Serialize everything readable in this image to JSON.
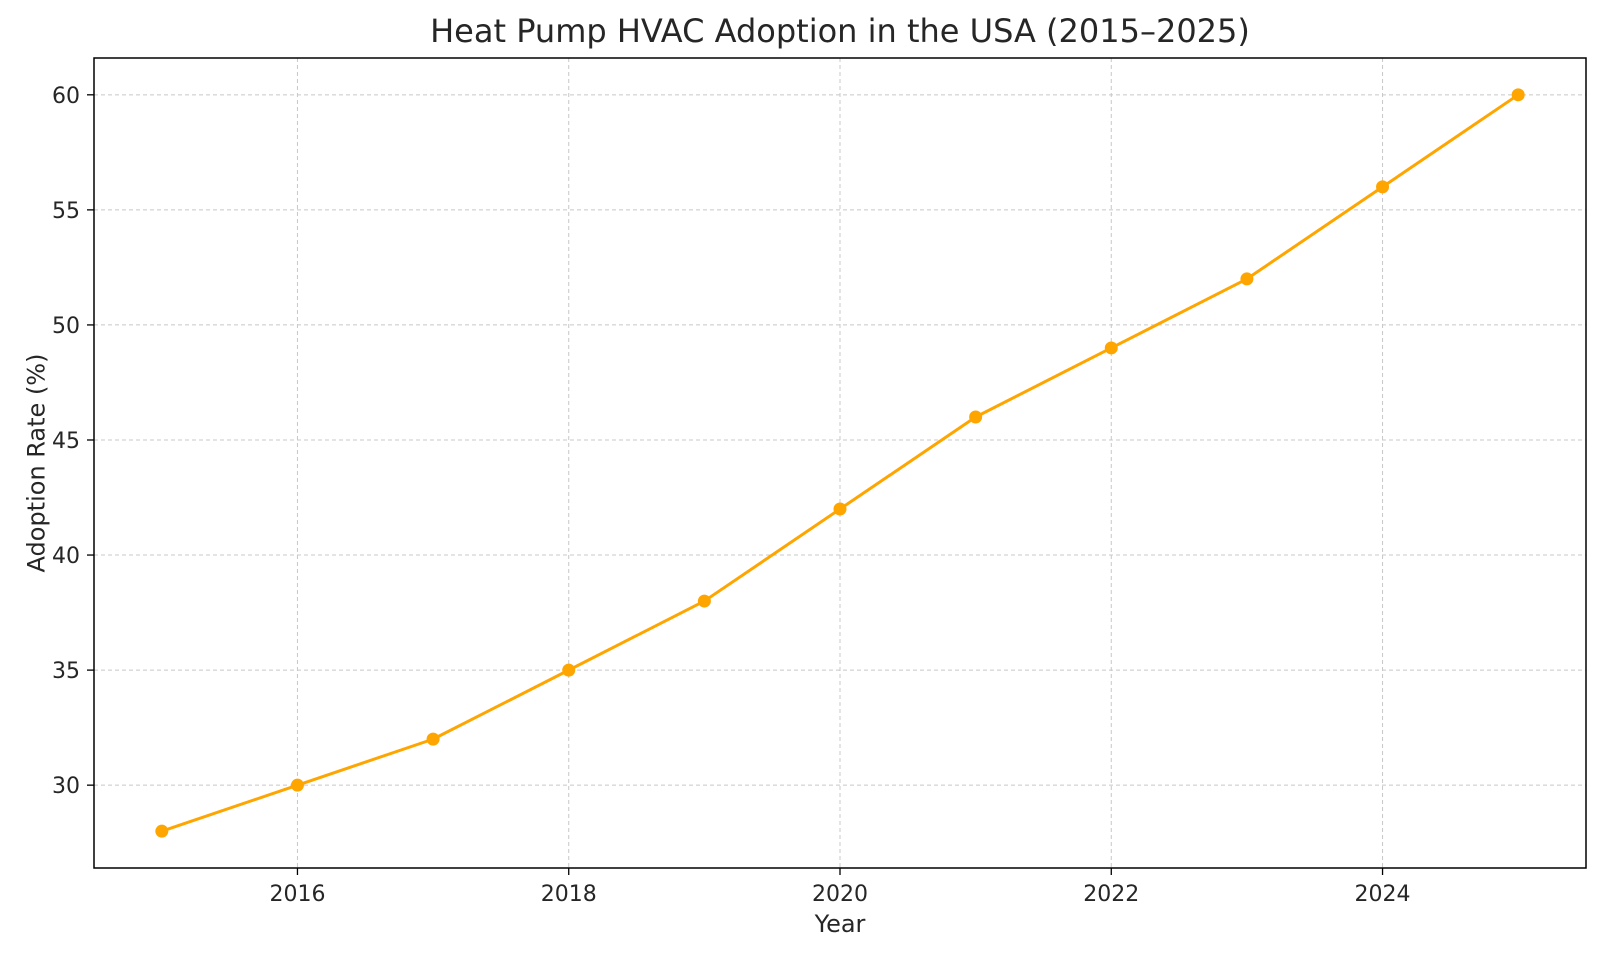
{
  "chart_data": {
    "type": "line",
    "title": "Heat Pump HVAC Adoption in the USA (2015–2025)",
    "xlabel": "Year",
    "ylabel": "Adoption Rate (%)",
    "x": [
      2015,
      2016,
      2017,
      2018,
      2019,
      2020,
      2021,
      2022,
      2023,
      2024,
      2025
    ],
    "series": [
      {
        "values": [
          28,
          30,
          32,
          35,
          38,
          42,
          46,
          49,
          52,
          56,
          60
        ],
        "color": "#FFA500",
        "marker": "circle"
      }
    ],
    "xlim": [
      2014.5,
      2025.5
    ],
    "ylim": [
      26.4,
      61.6
    ],
    "xticks": [
      2016,
      2018,
      2020,
      2022,
      2024
    ],
    "yticks": [
      30,
      35,
      40,
      45,
      50,
      55,
      60
    ],
    "grid": true
  }
}
